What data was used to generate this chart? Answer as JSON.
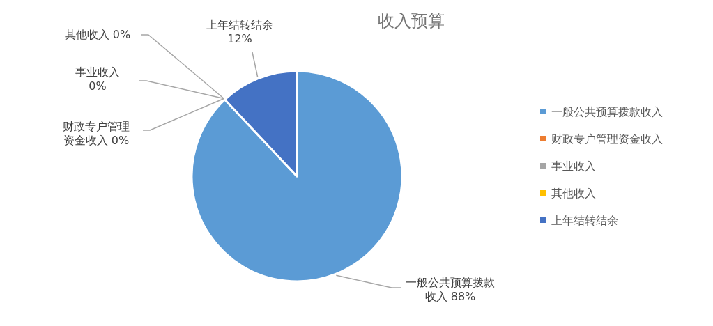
{
  "chart_data": {
    "type": "pie",
    "title": "收入预算",
    "categories": [
      "一般公共预算拨款收入",
      "财政专户管理资金收入",
      "事业收入",
      "其他收入",
      "上年结转结余"
    ],
    "values": [
      88,
      0,
      0,
      0,
      12
    ],
    "value_labels": [
      "88%",
      "0%",
      "0%",
      "0%",
      "12%"
    ],
    "colors": [
      "#5b9bd5",
      "#ed7d31",
      "#a5a5a5",
      "#ffc000",
      "#4472c4"
    ],
    "legend": "right"
  }
}
